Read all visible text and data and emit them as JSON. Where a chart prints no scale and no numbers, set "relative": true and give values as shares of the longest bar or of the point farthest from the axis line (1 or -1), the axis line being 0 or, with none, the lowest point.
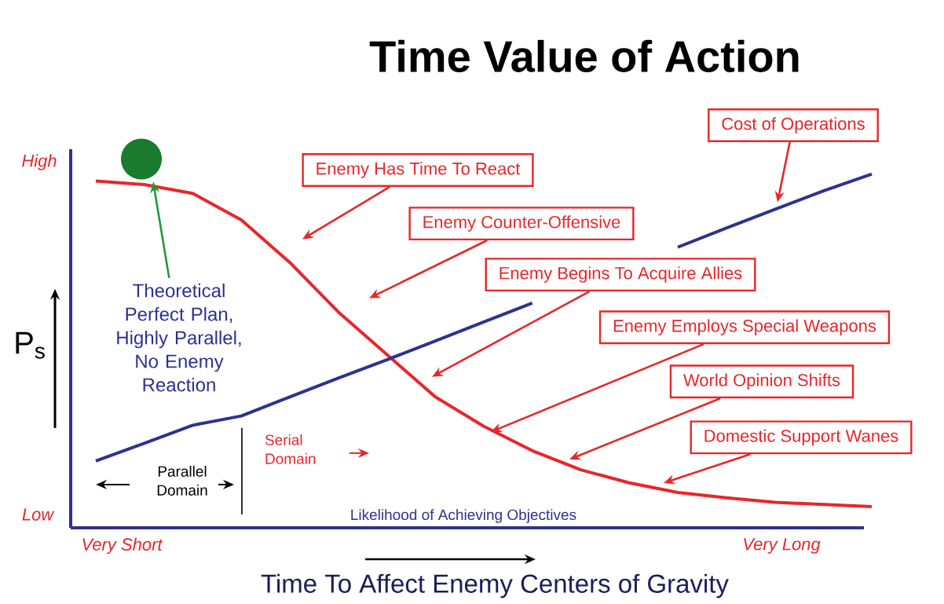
{
  "chart_data": {
    "type": "line",
    "title": "Time Value of Action",
    "xlabel": "Time To Affect Enemy Centers of Gravity",
    "ylabel": "P$_{s}$",
    "relative": true,
    "categories": [
      null,
      null,
      null,
      null,
      null,
      null,
      null,
      null,
      null,
      null,
      null,
      null,
      null,
      null,
      null,
      null,
      null
    ],
    "series": [
      {
        "color": "#e8262a",
        "marker": "none",
        "values": [
          0.98,
          0.97,
          0.945,
          0.87,
          0.75,
          0.61,
          0.49,
          0.37,
          0.287,
          0.218,
          0.164,
          0.127,
          0.1,
          0.085,
          0.072,
          0.066,
          0.06
        ]
      },
      {
        "color": "#2e3192",
        "marker": "none",
        "values": [
          0.189,
          0.239,
          0.29,
          0.316,
          0.37,
          0.423,
          0.475,
          0.528,
          0.582,
          0.635,
          null,
          null,
          0.793,
          0.847,
          0.9,
          0.952,
          1.0
        ]
      }
    ],
    "annotations": [
      "Cost of Operations",
      "Enemy Has Time To React",
      "Enemy Counter-Offensive",
      "Enemy Begins To Acquire Allies",
      "Enemy Employs Special Weapons",
      "World Opinion Shifts",
      "Domestic Support Wanes",
      "Theoretical Perfect Plan, Highly Parallel, No Enemy Reaction",
      "Serial Domain",
      "Parallel Domain",
      "Likelihood of Achieving Objectives",
      "High",
      "Low",
      "Very Short",
      "Very Long"
    ]
  }
}
